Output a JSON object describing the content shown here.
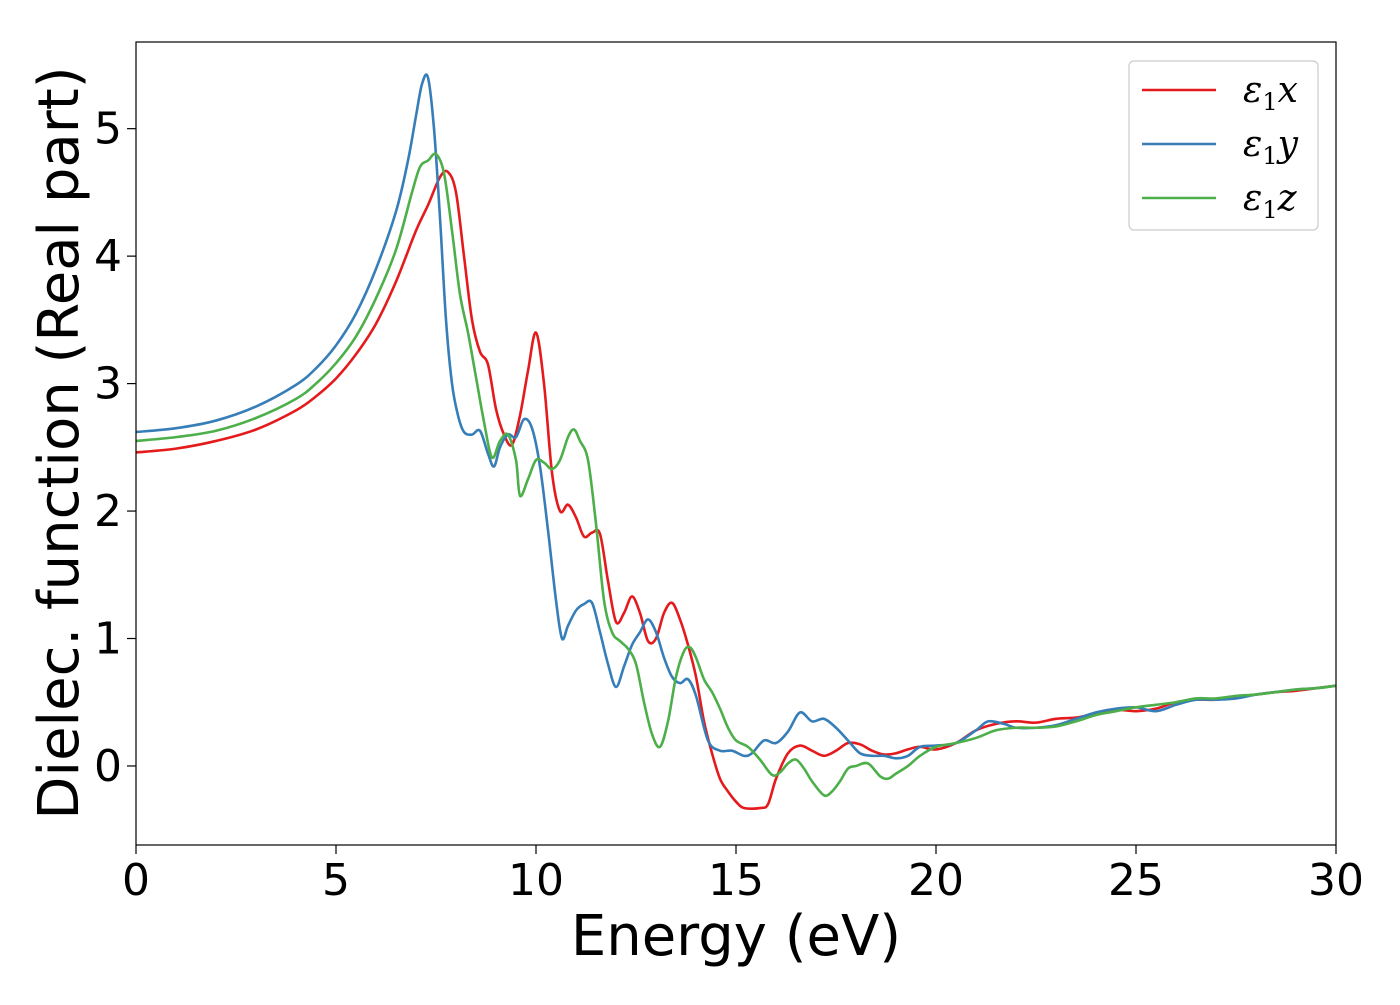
{
  "chart_data": {
    "type": "line",
    "title": "",
    "xlabel": "Energy (eV)",
    "ylabel": "Dielec. function (Real part)",
    "xlim": [
      0,
      30
    ],
    "ylim": [
      -0.62,
      5.68
    ],
    "xticks": [
      0,
      5,
      10,
      15,
      20,
      25,
      30
    ],
    "yticks": [
      0,
      1,
      2,
      3,
      4,
      5
    ],
    "grid": false,
    "legend_position": "top-right",
    "series": [
      {
        "name": "ε1x",
        "legend_symbol": "ε",
        "legend_subscript": "1",
        "legend_axis": "x",
        "color": "#e41a1c",
        "x": [
          0,
          1,
          2,
          3,
          4,
          4.5,
          5,
          5.5,
          6,
          6.5,
          7,
          7.3,
          7.6,
          7.8,
          8.0,
          8.2,
          8.4,
          8.6,
          8.8,
          9.0,
          9.2,
          9.4,
          9.6,
          9.8,
          10.0,
          10.2,
          10.4,
          10.6,
          10.8,
          11.0,
          11.2,
          11.4,
          11.6,
          11.8,
          12.0,
          12.2,
          12.4,
          12.6,
          12.8,
          13.0,
          13.2,
          13.4,
          13.6,
          13.8,
          14.0,
          14.2,
          14.4,
          14.6,
          14.8,
          15.0,
          15.2,
          15.6,
          15.8,
          16.0,
          16.3,
          16.6,
          16.9,
          17.2,
          17.5,
          17.8,
          18.1,
          18.4,
          18.7,
          19.0,
          19.3,
          19.6,
          20.0,
          20.5,
          21.0,
          21.5,
          22.0,
          22.5,
          23.0,
          23.5,
          24.0,
          24.5,
          25.0,
          25.5,
          26.0,
          26.5,
          27.0,
          27.5,
          28.0,
          28.5,
          29.0,
          29.5,
          30.0
        ],
        "y": [
          2.46,
          2.49,
          2.55,
          2.64,
          2.79,
          2.9,
          3.04,
          3.23,
          3.47,
          3.8,
          4.2,
          4.4,
          4.62,
          4.66,
          4.5,
          4.0,
          3.5,
          3.25,
          3.15,
          2.8,
          2.6,
          2.52,
          2.75,
          3.1,
          3.4,
          3.0,
          2.3,
          2.0,
          2.05,
          1.95,
          1.8,
          1.83,
          1.82,
          1.45,
          1.13,
          1.2,
          1.33,
          1.2,
          0.98,
          1.0,
          1.2,
          1.28,
          1.15,
          0.95,
          0.7,
          0.35,
          0.1,
          -0.1,
          -0.2,
          -0.28,
          -0.33,
          -0.33,
          -0.3,
          -0.1,
          0.1,
          0.16,
          0.12,
          0.08,
          0.12,
          0.18,
          0.17,
          0.12,
          0.09,
          0.1,
          0.13,
          0.15,
          0.13,
          0.18,
          0.28,
          0.33,
          0.35,
          0.34,
          0.37,
          0.38,
          0.41,
          0.44,
          0.43,
          0.45,
          0.5,
          0.52,
          0.52,
          0.54,
          0.56,
          0.58,
          0.59,
          0.61,
          0.63
        ]
      },
      {
        "name": "ε1y",
        "legend_symbol": "ε",
        "legend_subscript": "1",
        "legend_axis": "y",
        "color": "#377eb8",
        "x": [
          0,
          1,
          2,
          3,
          4,
          4.5,
          5,
          5.5,
          6,
          6.5,
          6.8,
          7.0,
          7.15,
          7.3,
          7.45,
          7.6,
          7.75,
          7.9,
          8.05,
          8.2,
          8.4,
          8.6,
          8.8,
          8.95,
          9.1,
          9.3,
          9.5,
          9.7,
          9.9,
          10.1,
          10.3,
          10.5,
          10.65,
          10.8,
          11.0,
          11.2,
          11.4,
          11.6,
          11.8,
          12.0,
          12.2,
          12.4,
          12.6,
          12.8,
          13.0,
          13.2,
          13.4,
          13.6,
          13.8,
          14.0,
          14.3,
          14.6,
          14.9,
          15.2,
          15.4,
          15.7,
          16.0,
          16.3,
          16.6,
          16.9,
          17.2,
          17.5,
          17.8,
          18.1,
          18.4,
          18.7,
          19.0,
          19.3,
          19.6,
          20.0,
          20.5,
          21.0,
          21.3,
          21.7,
          22.0,
          22.5,
          23.0,
          23.5,
          24.0,
          24.5,
          25.0,
          25.5,
          26.0,
          26.5,
          27.0,
          27.5,
          28.0,
          28.5,
          29.0,
          29.5,
          30.0
        ],
        "y": [
          2.62,
          2.65,
          2.71,
          2.82,
          2.99,
          3.12,
          3.3,
          3.55,
          3.9,
          4.35,
          4.75,
          5.1,
          5.35,
          5.4,
          5.0,
          4.3,
          3.5,
          3.0,
          2.75,
          2.62,
          2.6,
          2.63,
          2.45,
          2.35,
          2.5,
          2.6,
          2.58,
          2.72,
          2.65,
          2.35,
          1.85,
          1.3,
          1.0,
          1.1,
          1.22,
          1.27,
          1.28,
          1.05,
          0.8,
          0.62,
          0.78,
          0.95,
          1.05,
          1.15,
          1.05,
          0.85,
          0.7,
          0.65,
          0.68,
          0.55,
          0.2,
          0.12,
          0.12,
          0.08,
          0.1,
          0.2,
          0.18,
          0.27,
          0.42,
          0.35,
          0.37,
          0.3,
          0.2,
          0.1,
          0.08,
          0.08,
          0.06,
          0.08,
          0.15,
          0.16,
          0.18,
          0.28,
          0.35,
          0.33,
          0.3,
          0.3,
          0.32,
          0.37,
          0.42,
          0.45,
          0.46,
          0.43,
          0.48,
          0.52,
          0.52,
          0.53,
          0.56,
          0.58,
          0.6,
          0.61,
          0.63
        ]
      },
      {
        "name": "ε1z",
        "legend_symbol": "ε",
        "legend_subscript": "1",
        "legend_axis": "z",
        "color": "#4daf4a",
        "x": [
          0,
          1,
          2,
          3,
          4,
          4.5,
          5,
          5.5,
          6,
          6.5,
          6.9,
          7.1,
          7.3,
          7.5,
          7.7,
          7.9,
          8.1,
          8.3,
          8.5,
          8.7,
          8.9,
          9.1,
          9.3,
          9.5,
          9.6,
          9.8,
          10.0,
          10.2,
          10.4,
          10.6,
          10.8,
          10.95,
          11.1,
          11.3,
          11.5,
          11.7,
          11.9,
          12.1,
          12.3,
          12.5,
          12.7,
          12.9,
          13.1,
          13.3,
          13.5,
          13.7,
          13.85,
          14.0,
          14.2,
          14.4,
          14.6,
          14.8,
          15.0,
          15.3,
          15.6,
          15.9,
          16.1,
          16.3,
          16.5,
          16.7,
          16.9,
          17.2,
          17.4,
          17.6,
          17.8,
          18.0,
          18.3,
          18.6,
          18.8,
          19.0,
          19.3,
          19.6,
          20.0,
          20.5,
          21.0,
          21.5,
          22.0,
          22.5,
          23.0,
          23.5,
          24.0,
          24.5,
          25.0,
          25.5,
          26.0,
          26.5,
          27.0,
          27.5,
          28.0,
          28.5,
          29.0,
          29.5,
          30.0
        ],
        "y": [
          2.55,
          2.58,
          2.63,
          2.73,
          2.88,
          3.0,
          3.16,
          3.37,
          3.67,
          4.05,
          4.5,
          4.7,
          4.75,
          4.8,
          4.65,
          4.2,
          3.7,
          3.4,
          3.05,
          2.7,
          2.42,
          2.55,
          2.6,
          2.4,
          2.12,
          2.25,
          2.4,
          2.38,
          2.33,
          2.4,
          2.58,
          2.64,
          2.55,
          2.4,
          1.9,
          1.3,
          1.05,
          0.98,
          0.92,
          0.8,
          0.5,
          0.25,
          0.15,
          0.35,
          0.7,
          0.9,
          0.93,
          0.85,
          0.68,
          0.58,
          0.45,
          0.3,
          0.2,
          0.15,
          0.05,
          -0.07,
          -0.05,
          0.02,
          0.05,
          -0.02,
          -0.12,
          -0.23,
          -0.2,
          -0.12,
          -0.02,
          0.0,
          0.02,
          -0.08,
          -0.1,
          -0.06,
          0.0,
          0.08,
          0.15,
          0.18,
          0.22,
          0.28,
          0.3,
          0.3,
          0.31,
          0.35,
          0.4,
          0.43,
          0.46,
          0.48,
          0.5,
          0.53,
          0.53,
          0.55,
          0.56,
          0.58,
          0.6,
          0.61,
          0.63
        ]
      }
    ]
  }
}
